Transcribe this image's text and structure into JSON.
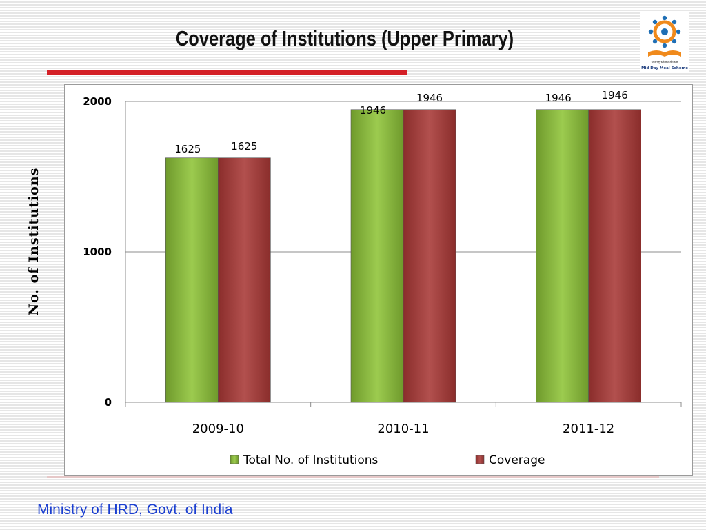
{
  "slide": {
    "title": "Coverage of Institutions (Upper Primary)",
    "footer": "Ministry of HRD, Govt. of India",
    "logo_icon": "mid-day-meal-scheme-logo",
    "logo_text": "Mid Day Meal Scheme",
    "accent_color": "#d42027",
    "footer_color": "#1b3fd0"
  },
  "chart_data": {
    "type": "bar",
    "title": "",
    "xlabel": "",
    "ylabel": "No. of Institutions",
    "categories": [
      "2009-10",
      "2010-11",
      "2011-12"
    ],
    "series": [
      {
        "name": "Total No. of Institutions",
        "values": [
          1625,
          1946,
          1946
        ],
        "color": "#8db843"
      },
      {
        "name": "Coverage",
        "values": [
          1625,
          1946,
          1946
        ],
        "color": "#a33b39"
      }
    ],
    "ylim": [
      0,
      2000
    ],
    "yticks": [
      0,
      1000,
      2000
    ],
    "grid": true,
    "legend": "bottom",
    "data_labels": true
  }
}
